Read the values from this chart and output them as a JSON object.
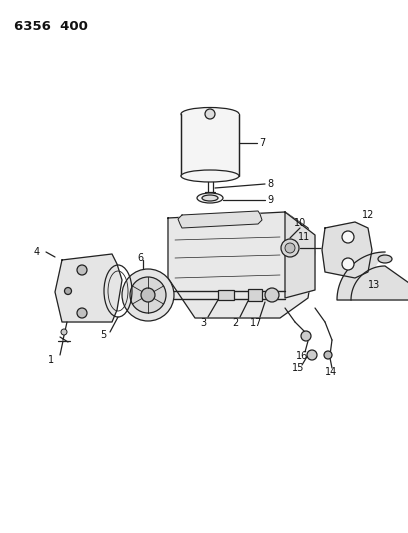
{
  "title": "6356  400",
  "bg_color": "#ffffff",
  "line_color": "#222222",
  "label_color": "#111111",
  "title_fontsize": 9.5,
  "label_fontsize": 7.0
}
